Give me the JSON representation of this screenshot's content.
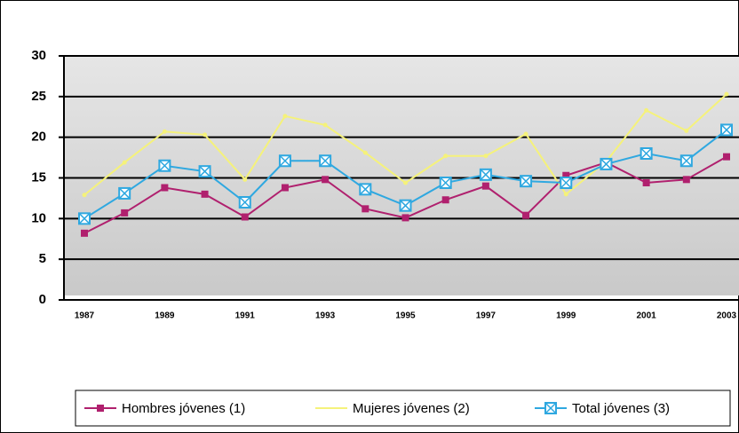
{
  "chart_data": {
    "type": "line",
    "categories": [
      "1987",
      null,
      "1989",
      null,
      "1991",
      null,
      "1993",
      null,
      "1995",
      null,
      "1997",
      null,
      "1999",
      null,
      "2001",
      null,
      "2003"
    ],
    "series": [
      {
        "name": "Hombres jóvenes (1)",
        "color": "#b0206e",
        "values": [
          8.2,
          10.7,
          13.8,
          13.0,
          10.2,
          13.8,
          14.8,
          11.2,
          10.1,
          12.3,
          14.0,
          10.4,
          15.3,
          16.9,
          14.4,
          14.8,
          17.6
        ]
      },
      {
        "name": "Mujeres jóvenes (2)",
        "color": "#f5f27a",
        "values": [
          12.9,
          16.9,
          20.7,
          20.3,
          14.8,
          22.6,
          21.5,
          18.1,
          14.4,
          17.7,
          17.7,
          20.4,
          13.0,
          17.0,
          23.3,
          20.8,
          25.3
        ]
      },
      {
        "name": "Total jóvenes (3)",
        "color": "#2fa8e0",
        "values": [
          10.0,
          13.1,
          16.5,
          15.8,
          12.0,
          17.1,
          17.1,
          13.6,
          11.6,
          14.4,
          15.4,
          14.6,
          14.4,
          16.7,
          18.0,
          17.1,
          20.9
        ]
      }
    ],
    "ylim": [
      0,
      30
    ],
    "yticks": [
      0,
      5,
      10,
      15,
      20,
      25,
      30
    ],
    "grid": true
  }
}
